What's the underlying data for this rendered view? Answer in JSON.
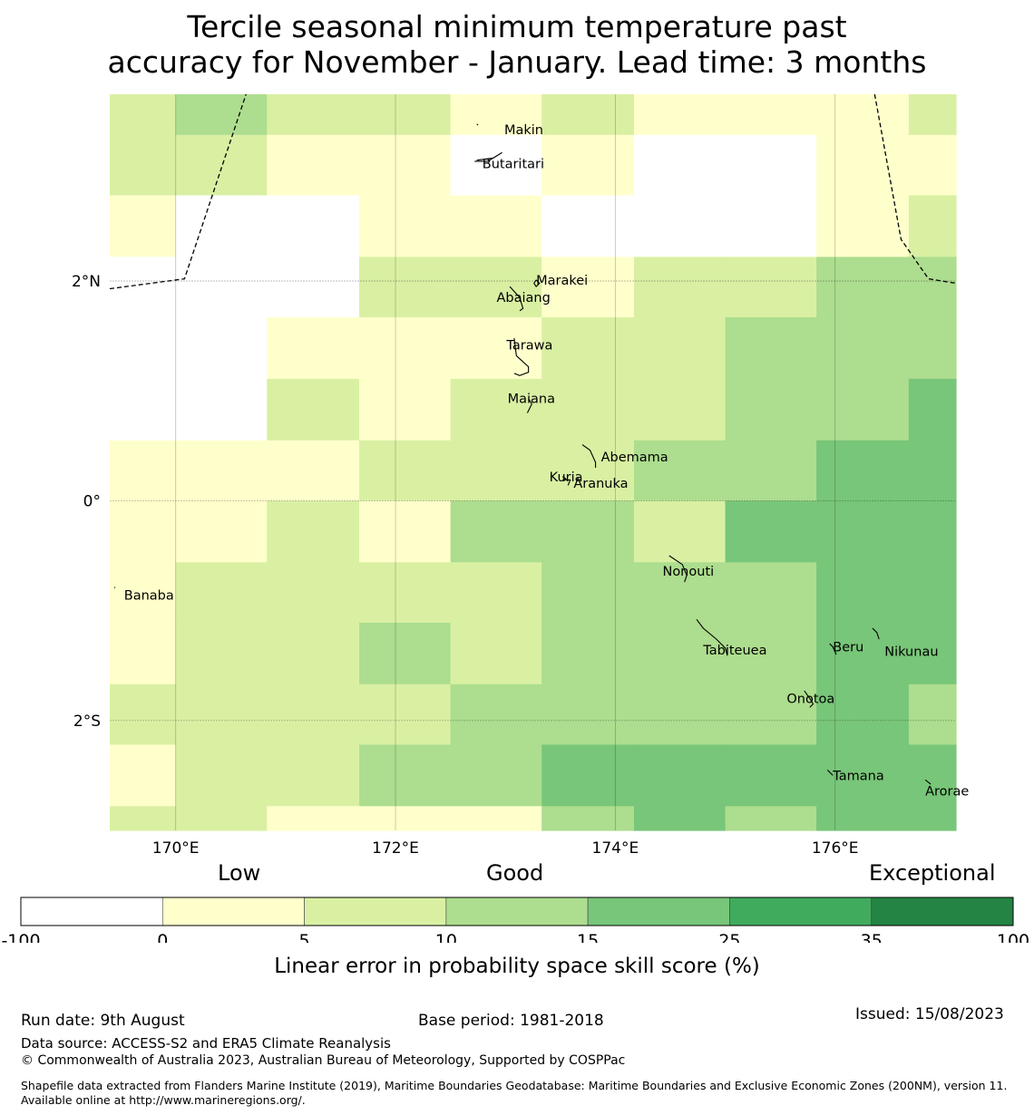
{
  "title": {
    "line1": "Tercile seasonal minimum temperature past",
    "line2": "accuracy for November - January. Lead time: 3 months"
  },
  "map": {
    "lon_range": [
      169.4,
      177.1
    ],
    "lat_range": [
      -3.0,
      3.7
    ],
    "x_ticks": [
      {
        "lon": 170,
        "label": "170°E"
      },
      {
        "lon": 172,
        "label": "172°E"
      },
      {
        "lon": 174,
        "label": "174°E"
      },
      {
        "lon": 176,
        "label": "176°E"
      }
    ],
    "y_ticks": [
      {
        "lat": 2,
        "label": "2°N"
      },
      {
        "lat": 0,
        "label": "0°"
      },
      {
        "lat": -2,
        "label": "2°S"
      }
    ],
    "grid_columns_lon": [
      169.4,
      170.0,
      170.83,
      171.67,
      172.5,
      173.33,
      174.17,
      175.0,
      175.83,
      176.67,
      177.1
    ],
    "grid_rows_lat": [
      3.7,
      3.33,
      2.78,
      2.22,
      1.67,
      1.11,
      0.55,
      0.0,
      -0.56,
      -1.11,
      -1.67,
      -2.22,
      -2.78,
      -3.0
    ],
    "skill_classes": [
      [
        "1",
        "2",
        "1",
        "1",
        "0",
        "1",
        "0",
        "0",
        "0",
        "1"
      ],
      [
        "1",
        "1",
        "0",
        "0",
        "w",
        "0",
        "w",
        "w",
        "0",
        "0"
      ],
      [
        "0",
        "w",
        "w",
        "0",
        "0",
        "w",
        "w",
        "w",
        "0",
        "1"
      ],
      [
        "w",
        "w",
        "w",
        "1",
        "1",
        "0",
        "1",
        "1",
        "2",
        "2"
      ],
      [
        "w",
        "w",
        "0",
        "0",
        "0",
        "1",
        "1",
        "2",
        "2",
        "2"
      ],
      [
        "w",
        "w",
        "1",
        "0",
        "1",
        "1",
        "1",
        "2",
        "2",
        "3"
      ],
      [
        "0",
        "0",
        "0",
        "1",
        "1",
        "1",
        "2",
        "2",
        "3",
        "3"
      ],
      [
        "0",
        "0",
        "1",
        "0",
        "2",
        "2",
        "1",
        "3",
        "3",
        "3"
      ],
      [
        "0",
        "1",
        "1",
        "1",
        "1",
        "2",
        "2",
        "2",
        "3",
        "3"
      ],
      [
        "0",
        "1",
        "1",
        "2",
        "1",
        "2",
        "2",
        "2",
        "3",
        "3"
      ],
      [
        "1",
        "1",
        "1",
        "1",
        "2",
        "2",
        "2",
        "2",
        "3",
        "2"
      ],
      [
        "0",
        "1",
        "1",
        "2",
        "2",
        "3",
        "3",
        "3",
        "3",
        "3"
      ],
      [
        "1",
        "1",
        "0",
        "0",
        "0",
        "2",
        "3",
        "2",
        "3",
        "3"
      ]
    ],
    "islands": [
      {
        "name": "Makin",
        "lon": 172.99,
        "lat": 3.38
      },
      {
        "name": "Butaritari",
        "lon": 172.79,
        "lat": 3.07
      },
      {
        "name": "Marakei",
        "lon": 173.28,
        "lat": 2.01
      },
      {
        "name": "Abaiang",
        "lon": 172.92,
        "lat": 1.85
      },
      {
        "name": "Tarawa",
        "lon": 173.01,
        "lat": 1.42
      },
      {
        "name": "Maiana",
        "lon": 173.02,
        "lat": 0.93
      },
      {
        "name": "Abemama",
        "lon": 173.87,
        "lat": 0.4
      },
      {
        "name": "Kuria",
        "lon": 173.4,
        "lat": 0.22
      },
      {
        "name": "Aranuka",
        "lon": 173.62,
        "lat": 0.16
      },
      {
        "name": "Nonouti",
        "lon": 174.43,
        "lat": -0.64
      },
      {
        "name": "Banaba",
        "lon": 169.53,
        "lat": -0.86
      },
      {
        "name": "Tabiteuea",
        "lon": 174.8,
        "lat": -1.36
      },
      {
        "name": "Beru",
        "lon": 175.98,
        "lat": -1.33
      },
      {
        "name": "Nikunau",
        "lon": 176.45,
        "lat": -1.37
      },
      {
        "name": "Onotoa",
        "lon": 175.56,
        "lat": -1.8
      },
      {
        "name": "Tamana",
        "lon": 175.98,
        "lat": -2.5
      },
      {
        "name": "Arorae",
        "lon": 176.82,
        "lat": -2.64
      }
    ]
  },
  "colorbar": {
    "categories": [
      "Low",
      "Good",
      "Exceptional"
    ],
    "bins": [
      {
        "from": -100,
        "to": 0,
        "color": "#ffffff"
      },
      {
        "from": 0,
        "to": 5,
        "color": "#ffffcc"
      },
      {
        "from": 5,
        "to": 10,
        "color": "#d9f0a3"
      },
      {
        "from": 10,
        "to": 15,
        "color": "#addd8e"
      },
      {
        "from": 15,
        "to": 25,
        "color": "#78c679"
      },
      {
        "from": 25,
        "to": 35,
        "color": "#41ab5d"
      },
      {
        "from": 35,
        "to": 100,
        "color": "#238443"
      }
    ],
    "tick_labels": [
      "-100",
      "0",
      "5",
      "10",
      "15",
      "25",
      "35",
      "100"
    ],
    "label": "Linear error in probability space skill score (%)"
  },
  "footer": {
    "run_date": "Run date: 9th August",
    "base_period": "Base period: 1981-2018",
    "issued": "Issued: 15/08/2023",
    "data_source": "Data source: ACCESS-S2 and ERA5 Climate Reanalysis",
    "copyright": "© Commonwealth of Australia 2023, Australian Bureau of Meteorology, Supported by COSPPac",
    "shapefile": "Shapefile data extracted from Flanders Marine Institute (2019), Maritime Boundaries Geodatabase: Maritime Boundaries and Exclusive Economic Zones (200NM), version 11. Available online at http://www.marineregions.org/."
  }
}
